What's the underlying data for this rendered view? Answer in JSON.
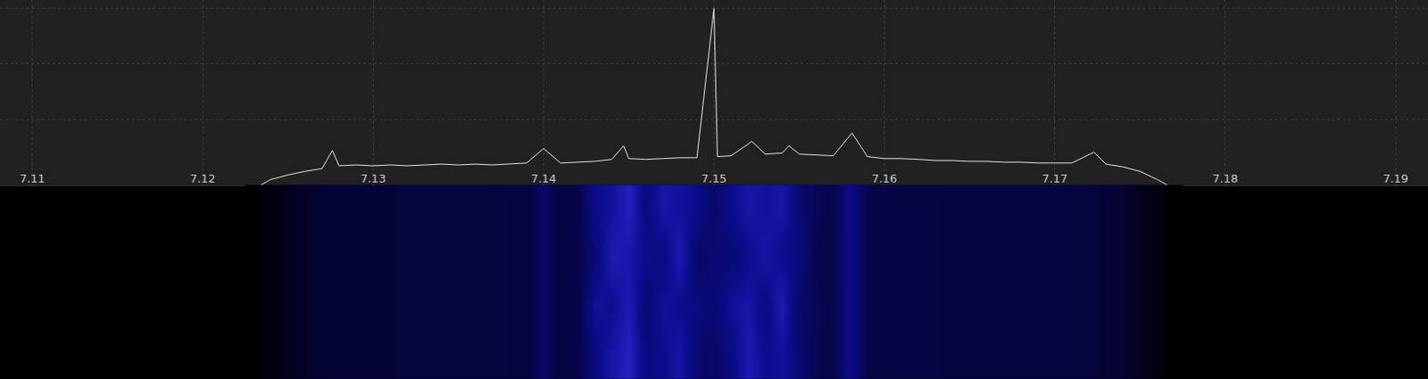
{
  "chart_data": [
    {
      "type": "line",
      "x": [
        7.1234,
        7.124,
        7.125,
        7.126,
        7.127,
        7.1276,
        7.128,
        7.129,
        7.13,
        7.131,
        7.132,
        7.133,
        7.134,
        7.135,
        7.136,
        7.137,
        7.138,
        7.139,
        7.14,
        7.141,
        7.142,
        7.143,
        7.144,
        7.1447,
        7.145,
        7.146,
        7.147,
        7.148,
        7.149,
        7.15,
        7.1502,
        7.151,
        7.152,
        7.1522,
        7.1525,
        7.153,
        7.154,
        7.1544,
        7.155,
        7.156,
        7.157,
        7.1581,
        7.159,
        7.16,
        7.161,
        7.162,
        7.163,
        7.164,
        7.165,
        7.166,
        7.167,
        7.168,
        7.169,
        7.17,
        7.171,
        7.1723,
        7.173,
        7.174,
        7.175,
        7.176,
        7.1766
      ],
      "values": [
        -123.6,
        -121.6,
        -120.0,
        -118.7,
        -117.7,
        -111.2,
        -116.7,
        -116.4,
        -116.7,
        -116.4,
        -116.7,
        -116.4,
        -116.1,
        -116.4,
        -116.1,
        -116.4,
        -116.1,
        -115.7,
        -110.5,
        -115.7,
        -115.4,
        -115.1,
        -114.4,
        -109.5,
        -114.1,
        -114.4,
        -114.1,
        -113.8,
        -113.8,
        -60.0,
        -113.4,
        -113.1,
        -108.9,
        -107.9,
        -109.5,
        -112.5,
        -112.1,
        -109.5,
        -112.5,
        -112.8,
        -113.1,
        -104.9,
        -113.4,
        -114.1,
        -114.1,
        -114.4,
        -114.8,
        -114.8,
        -115.1,
        -115.1,
        -115.4,
        -115.4,
        -115.7,
        -115.7,
        -115.7,
        -111.8,
        -116.1,
        -117.1,
        -118.7,
        -121.6,
        -123.6
      ],
      "color": "#e6e6e6",
      "xlim": [
        7.1081,
        7.1919
      ],
      "xticks": [
        7.11,
        7.12,
        7.13,
        7.14,
        7.15,
        7.16,
        7.17,
        7.18,
        7.19
      ],
      "ylim": [
        -123.6,
        -57
      ],
      "yticks": [
        -100,
        -80,
        -60
      ],
      "grid": true,
      "tick_labels": "x"
    },
    {
      "type": "heatmap",
      "x": [
        7.123,
        7.124,
        7.125,
        7.126,
        7.127,
        7.128,
        7.129,
        7.13,
        7.131,
        7.132,
        7.133,
        7.134,
        7.135,
        7.136,
        7.137,
        7.138,
        7.139,
        7.14,
        7.141,
        7.142,
        7.143,
        7.144,
        7.145,
        7.146,
        7.147,
        7.148,
        7.149,
        7.15,
        7.151,
        7.152,
        7.153,
        7.154,
        7.155,
        7.156,
        7.157,
        7.158,
        7.159,
        7.16,
        7.161,
        7.162,
        7.163,
        7.164,
        7.165,
        7.166,
        7.167,
        7.168,
        7.169,
        7.17,
        7.171,
        7.172,
        7.173,
        7.174,
        7.175,
        7.176,
        7.177
      ],
      "xlim": [
        7.1081,
        7.1919
      ],
      "zlim": [
        -125,
        -100
      ],
      "rows": [
        [
          -125,
          -122,
          -120,
          -118.5,
          -117.5,
          -117,
          -117,
          -117,
          -117,
          -116.5,
          -116.5,
          -116.5,
          -116.5,
          -116.5,
          -116.5,
          -116,
          -116,
          -113,
          -116,
          -115,
          -111,
          -108,
          -106,
          -111,
          -110,
          -108,
          -112,
          -113,
          -111,
          -107,
          -110,
          -109,
          -112,
          -114.5,
          -115,
          -110,
          -115,
          -115.5,
          -115.5,
          -115.5,
          -115.5,
          -116,
          -116,
          -116,
          -116,
          -116,
          -116,
          -116,
          -116.5,
          -116.5,
          -117,
          -118,
          -119.5,
          -122,
          -125
        ],
        [
          -125,
          -122,
          -120,
          -118.5,
          -117.5,
          -117,
          -117,
          -117,
          -117,
          -116.5,
          -116.5,
          -116.5,
          -116.5,
          -116.5,
          -116.5,
          -116,
          -116,
          -113,
          -116,
          -115,
          -109,
          -110,
          -107,
          -112,
          -109,
          -110,
          -111,
          -112,
          -109,
          -108,
          -111,
          -107,
          -113,
          -114,
          -115,
          -110,
          -115,
          -115.5,
          -115.5,
          -115.5,
          -115.5,
          -116,
          -116,
          -116,
          -116,
          -116,
          -116,
          -116,
          -116.5,
          -116.5,
          -117,
          -118,
          -119.5,
          -122,
          -125
        ],
        [
          -125,
          -122,
          -120,
          -118.5,
          -117.5,
          -117,
          -117,
          -117,
          -117,
          -116.5,
          -116.5,
          -116.5,
          -116.5,
          -116.5,
          -116.5,
          -116,
          -116,
          -113,
          -116,
          -115,
          -112,
          -107,
          -108,
          -110,
          -111,
          -107,
          -113,
          -112,
          -112,
          -110,
          -108,
          -110,
          -111,
          -115,
          -115,
          -110,
          -115,
          -115.5,
          -115.5,
          -115.5,
          -115.5,
          -116,
          -116,
          -116,
          -116,
          -116,
          -116,
          -116,
          -116.5,
          -116.5,
          -117,
          -118,
          -119.5,
          -122,
          -125
        ],
        [
          -125,
          -122,
          -120,
          -118.5,
          -117.5,
          -117,
          -117,
          -117,
          -117,
          -116.5,
          -116.5,
          -116.5,
          -116.5,
          -116.5,
          -116.5,
          -116,
          -116,
          -113,
          -116,
          -115,
          -110,
          -109,
          -106,
          -111,
          -108,
          -109,
          -110,
          -113,
          -110,
          -108,
          -109,
          -108,
          -112,
          -114,
          -115,
          -110,
          -115,
          -115.5,
          -115.5,
          -115.5,
          -115.5,
          -116,
          -116,
          -116,
          -116,
          -116,
          -116,
          -116,
          -116.5,
          -116.5,
          -117,
          -118,
          -119.5,
          -122,
          -125
        ]
      ]
    }
  ]
}
